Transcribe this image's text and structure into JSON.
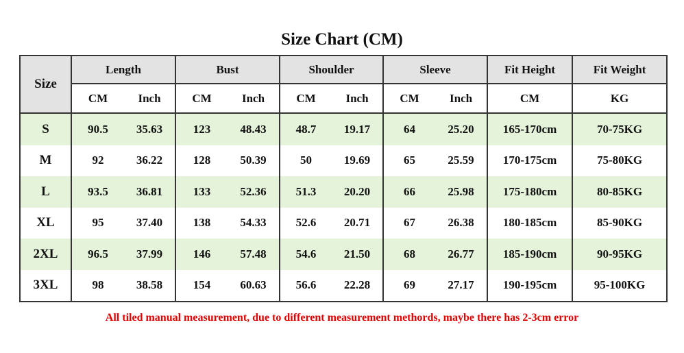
{
  "title": "Size Chart (CM)",
  "table": {
    "groups": [
      "Size",
      "Length",
      "Bust",
      "Shoulder",
      "Sleeve",
      "Fit Height",
      "Fit Weight"
    ],
    "units": [
      "CM",
      "Inch",
      "CM",
      "Inch",
      "CM",
      "Inch",
      "CM",
      "Inch",
      "CM",
      "KG"
    ],
    "rows": [
      [
        "S",
        "90.5",
        "35.63",
        "123",
        "48.43",
        "48.7",
        "19.17",
        "64",
        "25.20",
        "165-170cm",
        "70-75KG"
      ],
      [
        "M",
        "92",
        "36.22",
        "128",
        "50.39",
        "50",
        "19.69",
        "65",
        "25.59",
        "170-175cm",
        "75-80KG"
      ],
      [
        "L",
        "93.5",
        "36.81",
        "133",
        "52.36",
        "51.3",
        "20.20",
        "66",
        "25.98",
        "175-180cm",
        "80-85KG"
      ],
      [
        "XL",
        "95",
        "37.40",
        "138",
        "54.33",
        "52.6",
        "20.71",
        "67",
        "26.38",
        "180-185cm",
        "85-90KG"
      ],
      [
        "2XL",
        "96.5",
        "37.99",
        "146",
        "57.48",
        "54.6",
        "21.50",
        "68",
        "26.77",
        "185-190cm",
        "90-95KG"
      ],
      [
        "3XL",
        "98",
        "38.58",
        "154",
        "60.63",
        "56.6",
        "22.28",
        "69",
        "27.17",
        "190-195cm",
        "95-100KG"
      ]
    ]
  },
  "note": "All tiled manual measurement, due to different measurement methords, maybe there has 2-3cm error"
}
